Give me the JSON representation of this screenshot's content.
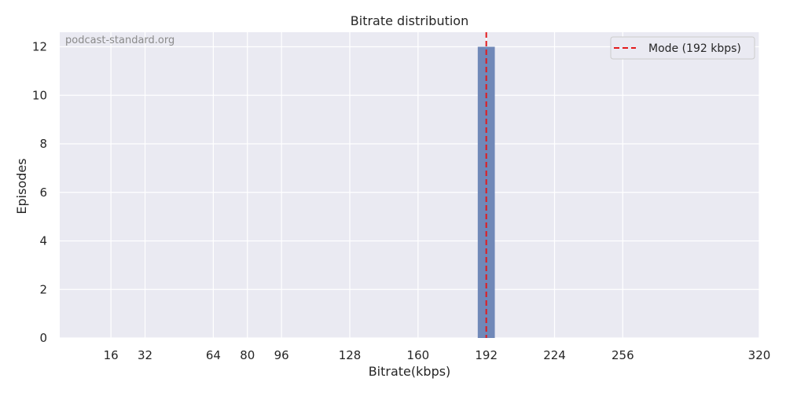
{
  "chart_data": {
    "type": "bar",
    "title": "Bitrate distribution",
    "xlabel": "Bitrate(kbps)",
    "ylabel": "Episodes",
    "watermark": "podcast-standard.org",
    "xlim": [
      -8,
      320
    ],
    "ylim": [
      0,
      12.6
    ],
    "xticks": [
      16,
      32,
      64,
      80,
      96,
      128,
      160,
      192,
      224,
      256,
      320
    ],
    "yticks": [
      0,
      2,
      4,
      6,
      8,
      10,
      12
    ],
    "bins": [
      {
        "x0": 188,
        "x1": 196,
        "count": 12
      }
    ],
    "mode_line": {
      "x": 192,
      "label": "Mode (192 kbps)",
      "color": "#e31a1c",
      "style": "dashed"
    },
    "bar_color": "#7088b8",
    "background": "#eaeaf2",
    "grid": true,
    "legend": "top-right"
  }
}
